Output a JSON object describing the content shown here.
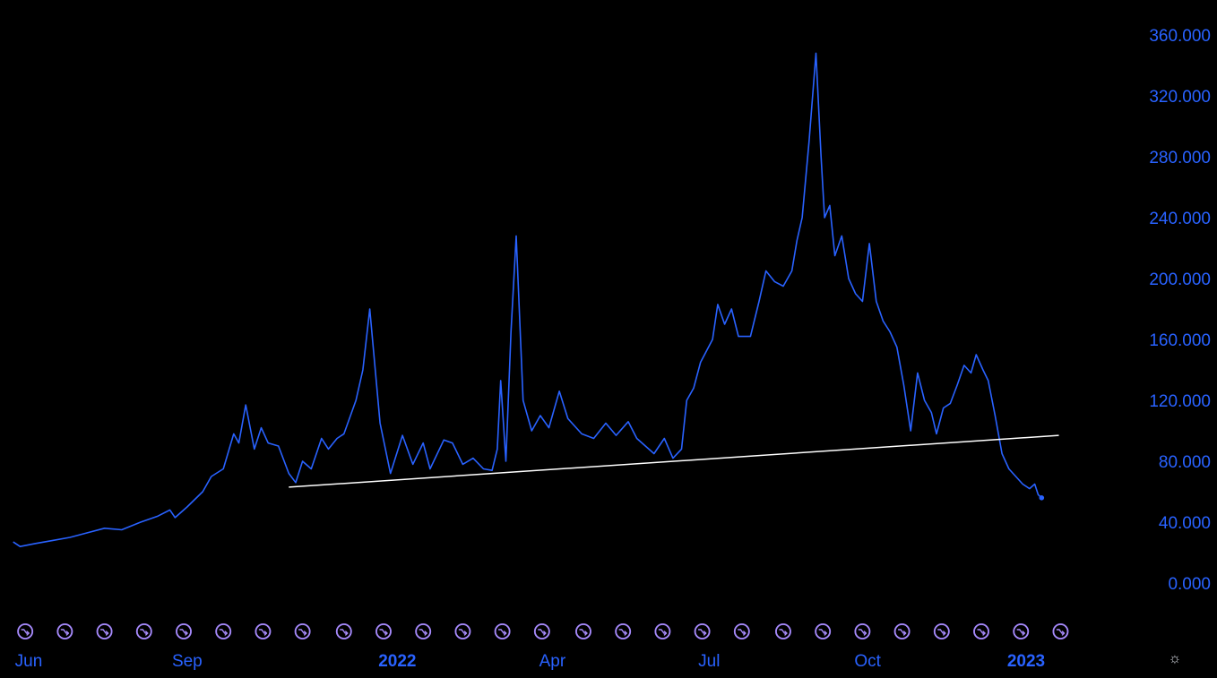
{
  "chart_data": {
    "type": "line",
    "x_axis_labels": [
      {
        "label": "Jun",
        "date": "2021-06-01",
        "bold": false
      },
      {
        "label": "Sep",
        "date": "2021-09-01",
        "bold": false
      },
      {
        "label": "2022",
        "date": "2022-01-01",
        "bold": true
      },
      {
        "label": "Apr",
        "date": "2022-04-01",
        "bold": false
      },
      {
        "label": "Jul",
        "date": "2022-07-01",
        "bold": false
      },
      {
        "label": "Oct",
        "date": "2022-10-01",
        "bold": false
      },
      {
        "label": "2023",
        "date": "2023-01-01",
        "bold": true
      }
    ],
    "y_ticks": [
      "0.000",
      "40.000",
      "80.000",
      "120.000",
      "160.000",
      "200.000",
      "240.000",
      "280.000",
      "320.000",
      "360.000"
    ],
    "ylim": [
      0,
      360
    ],
    "series": [
      {
        "color": "#2962ff",
        "points": [
          [
            "2021-05-23",
            27
          ],
          [
            "2021-05-27",
            24
          ],
          [
            "2021-06-05",
            26
          ],
          [
            "2021-06-15",
            28
          ],
          [
            "2021-06-25",
            30
          ],
          [
            "2021-07-05",
            33
          ],
          [
            "2021-07-15",
            36
          ],
          [
            "2021-07-25",
            35
          ],
          [
            "2021-08-05",
            40
          ],
          [
            "2021-08-15",
            44
          ],
          [
            "2021-08-22",
            48
          ],
          [
            "2021-08-25",
            43
          ],
          [
            "2021-09-01",
            50
          ],
          [
            "2021-09-10",
            60
          ],
          [
            "2021-09-15",
            70
          ],
          [
            "2021-09-22",
            75
          ],
          [
            "2021-09-28",
            98
          ],
          [
            "2021-10-01",
            92
          ],
          [
            "2021-10-05",
            117
          ],
          [
            "2021-10-10",
            88
          ],
          [
            "2021-10-14",
            102
          ],
          [
            "2021-10-18",
            92
          ],
          [
            "2021-10-24",
            90
          ],
          [
            "2021-10-30",
            72
          ],
          [
            "2021-11-03",
            66
          ],
          [
            "2021-11-07",
            80
          ],
          [
            "2021-11-12",
            75
          ],
          [
            "2021-11-18",
            95
          ],
          [
            "2021-11-22",
            88
          ],
          [
            "2021-11-27",
            95
          ],
          [
            "2021-12-01",
            98
          ],
          [
            "2021-12-08",
            120
          ],
          [
            "2021-12-12",
            140
          ],
          [
            "2021-12-16",
            180
          ],
          [
            "2021-12-22",
            105
          ],
          [
            "2021-12-28",
            72
          ],
          [
            "2022-01-04",
            97
          ],
          [
            "2022-01-10",
            78
          ],
          [
            "2022-01-16",
            92
          ],
          [
            "2022-01-20",
            75
          ],
          [
            "2022-01-28",
            94
          ],
          [
            "2022-02-02",
            92
          ],
          [
            "2022-02-08",
            78
          ],
          [
            "2022-02-14",
            82
          ],
          [
            "2022-02-20",
            75
          ],
          [
            "2022-02-25",
            74
          ],
          [
            "2022-02-28",
            88
          ],
          [
            "2022-03-02",
            133
          ],
          [
            "2022-03-05",
            80
          ],
          [
            "2022-03-08",
            165
          ],
          [
            "2022-03-11",
            228
          ],
          [
            "2022-03-15",
            120
          ],
          [
            "2022-03-20",
            100
          ],
          [
            "2022-03-25",
            110
          ],
          [
            "2022-03-30",
            102
          ],
          [
            "2022-04-05",
            126
          ],
          [
            "2022-04-10",
            108
          ],
          [
            "2022-04-18",
            98
          ],
          [
            "2022-04-25",
            95
          ],
          [
            "2022-05-02",
            105
          ],
          [
            "2022-05-08",
            97
          ],
          [
            "2022-05-15",
            106
          ],
          [
            "2022-05-20",
            95
          ],
          [
            "2022-05-25",
            90
          ],
          [
            "2022-05-30",
            85
          ],
          [
            "2022-06-05",
            95
          ],
          [
            "2022-06-10",
            82
          ],
          [
            "2022-06-15",
            88
          ],
          [
            "2022-06-18",
            120
          ],
          [
            "2022-06-22",
            128
          ],
          [
            "2022-06-26",
            145
          ],
          [
            "2022-07-03",
            160
          ],
          [
            "2022-07-06",
            183
          ],
          [
            "2022-07-10",
            170
          ],
          [
            "2022-07-14",
            180
          ],
          [
            "2022-07-18",
            162
          ],
          [
            "2022-07-25",
            162
          ],
          [
            "2022-07-30",
            185
          ],
          [
            "2022-08-03",
            205
          ],
          [
            "2022-08-08",
            198
          ],
          [
            "2022-08-13",
            195
          ],
          [
            "2022-08-18",
            205
          ],
          [
            "2022-08-21",
            225
          ],
          [
            "2022-08-24",
            240
          ],
          [
            "2022-08-28",
            290
          ],
          [
            "2022-09-01",
            348
          ],
          [
            "2022-09-04",
            280
          ],
          [
            "2022-09-06",
            240
          ],
          [
            "2022-09-09",
            248
          ],
          [
            "2022-09-12",
            215
          ],
          [
            "2022-09-16",
            228
          ],
          [
            "2022-09-20",
            200
          ],
          [
            "2022-09-24",
            190
          ],
          [
            "2022-09-28",
            185
          ],
          [
            "2022-10-02",
            223
          ],
          [
            "2022-10-06",
            185
          ],
          [
            "2022-10-10",
            172
          ],
          [
            "2022-10-14",
            165
          ],
          [
            "2022-10-18",
            155
          ],
          [
            "2022-10-22",
            130
          ],
          [
            "2022-10-26",
            100
          ],
          [
            "2022-10-30",
            138
          ],
          [
            "2022-11-03",
            120
          ],
          [
            "2022-11-07",
            112
          ],
          [
            "2022-11-10",
            98
          ],
          [
            "2022-11-14",
            115
          ],
          [
            "2022-11-18",
            118
          ],
          [
            "2022-11-22",
            130
          ],
          [
            "2022-11-26",
            143
          ],
          [
            "2022-11-30",
            138
          ],
          [
            "2022-12-03",
            150
          ],
          [
            "2022-12-07",
            140
          ],
          [
            "2022-12-10",
            133
          ],
          [
            "2022-12-14",
            110
          ],
          [
            "2022-12-18",
            85
          ],
          [
            "2022-12-22",
            75
          ],
          [
            "2022-12-26",
            70
          ],
          [
            "2022-12-30",
            65
          ],
          [
            "2023-01-03",
            62
          ],
          [
            "2023-01-06",
            65
          ],
          [
            "2023-01-08",
            58
          ],
          [
            "2023-01-10",
            56
          ]
        ]
      }
    ],
    "trendline": {
      "color": "#ffffff",
      "start": [
        "2021-10-30",
        63
      ],
      "end": [
        "2023-01-20",
        97
      ]
    },
    "last_point_marker": [
      "2023-01-10",
      56
    ],
    "event_markers": [
      "2021-05-30",
      "2021-06-22",
      "2021-07-15",
      "2021-08-07",
      "2021-08-30",
      "2021-09-22",
      "2021-10-15",
      "2021-11-07",
      "2021-12-01",
      "2021-12-24",
      "2022-01-16",
      "2022-02-08",
      "2022-03-03",
      "2022-03-26",
      "2022-04-19",
      "2022-05-12",
      "2022-06-04",
      "2022-06-27",
      "2022-07-20",
      "2022-08-13",
      "2022-09-05",
      "2022-09-28",
      "2022-10-21",
      "2022-11-13",
      "2022-12-06",
      "2022-12-29",
      "2023-01-21"
    ],
    "grid": false,
    "legend": "none",
    "xlabel": "",
    "ylabel": ""
  },
  "icons": {
    "settings": "settings-sun-icon",
    "event_marker": "arrow-circle-icon"
  }
}
